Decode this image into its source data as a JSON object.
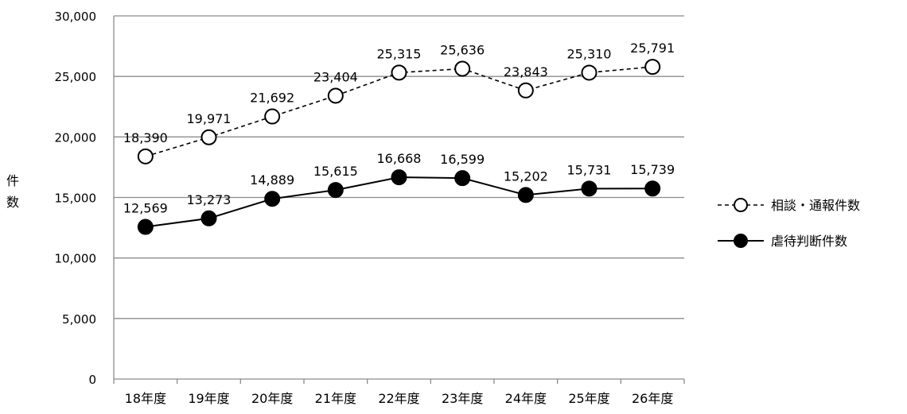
{
  "chart_data": {
    "type": "line",
    "categories": [
      "18年度",
      "19年度",
      "20年度",
      "21年度",
      "22年度",
      "23年度",
      "24年度",
      "25年度",
      "26年度"
    ],
    "series": [
      {
        "name": "相談・通報件数",
        "values": [
          18390,
          19971,
          21692,
          23404,
          25315,
          25636,
          23843,
          25310,
          25791
        ],
        "labels": [
          "18,390",
          "19,971",
          "21,692",
          "23,404",
          "25,315",
          "25,636",
          "23,843",
          "25,310",
          "25,791"
        ],
        "line_style": "dashed",
        "marker": "open-circle"
      },
      {
        "name": "虐待判断件数",
        "values": [
          12569,
          13273,
          14889,
          15615,
          16668,
          16599,
          15202,
          15731,
          15739
        ],
        "labels": [
          "12,569",
          "13,273",
          "14,889",
          "15,615",
          "16,668",
          "16,599",
          "15,202",
          "15,731",
          "15,739"
        ],
        "line_style": "solid",
        "marker": "filled-circle"
      }
    ],
    "ylabel": "件数",
    "ylim": [
      0,
      30000
    ],
    "yticks": [
      0,
      5000,
      10000,
      15000,
      20000,
      25000,
      30000
    ],
    "ytick_labels": [
      "0",
      "5,000",
      "10,000",
      "15,000",
      "20,000",
      "25,000",
      "30,000"
    ],
    "grid": "horizontal",
    "legend_position": "right",
    "colors": {
      "line": "#000000",
      "grid": "#8c8c8c",
      "background": "#ffffff"
    }
  }
}
